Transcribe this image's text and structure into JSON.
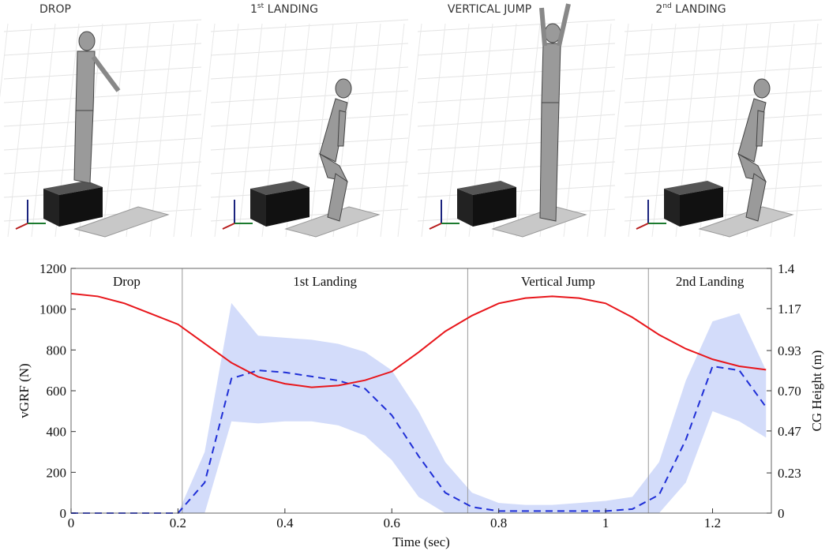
{
  "panels": [
    {
      "text": "DROP"
    },
    {
      "text": "1",
      "sup": "st",
      "after": " LANDING"
    },
    {
      "text": "VERTICAL JUMP"
    },
    {
      "text": "2",
      "sup": "nd",
      "after": " LANDING"
    }
  ],
  "chart_data": {
    "type": "line",
    "x_label": "Time (sec)",
    "y_label": "vGRF (N)",
    "y2_label": "CG Height (m)",
    "xlim": [
      0,
      1.31
    ],
    "xticks": [
      0,
      0.2,
      0.4,
      0.6,
      0.8,
      1,
      1.2
    ],
    "ylim": [
      0,
      1200
    ],
    "yticks": [
      0,
      200,
      400,
      600,
      800,
      1000,
      1200
    ],
    "y2lim": [
      0,
      1.4
    ],
    "y2ticks": [
      0,
      0.23,
      0.47,
      {
        "value": 0.7,
        "label": "0.70"
      },
      0.93,
      1.17,
      1.4
    ],
    "phase_boundaries": [
      0.208,
      0.742,
      1.08
    ],
    "phase_labels": [
      "Drop",
      "1st Landing",
      "Vertical Jump",
      "2nd Landing"
    ],
    "x": [
      0,
      0.05,
      0.1,
      0.15,
      0.2,
      0.25,
      0.3,
      0.35,
      0.4,
      0.45,
      0.5,
      0.55,
      0.6,
      0.65,
      0.7,
      0.75,
      0.8,
      0.85,
      0.9,
      0.95,
      1,
      1.05,
      1.1,
      1.15,
      1.2,
      1.25,
      1.3
    ],
    "band": {
      "color": "#d3dcfa",
      "upper": [
        0,
        0,
        0,
        0,
        0,
        300,
        1030,
        870,
        860,
        850,
        830,
        790,
        700,
        500,
        250,
        100,
        50,
        40,
        40,
        50,
        60,
        80,
        250,
        650,
        940,
        980,
        700
      ],
      "lower": [
        0,
        0,
        0,
        0,
        0,
        0,
        450,
        440,
        450,
        450,
        430,
        380,
        260,
        80,
        0,
        0,
        0,
        0,
        0,
        0,
        0,
        0,
        0,
        150,
        500,
        450,
        370
      ]
    },
    "series": [
      {
        "color": "#1f2fd6",
        "dashed": true,
        "values": [
          0,
          0,
          0,
          0,
          0,
          150,
          660,
          700,
          690,
          670,
          650,
          610,
          480,
          280,
          100,
          30,
          10,
          10,
          10,
          10,
          10,
          20,
          90,
          360,
          720,
          700,
          520
        ]
      },
      {
        "color": "#e8161b",
        "axis": "y2",
        "values": [
          1.256,
          1.24,
          1.2,
          1.14,
          1.08,
          0.97,
          0.86,
          0.78,
          0.74,
          0.72,
          0.73,
          0.76,
          0.81,
          0.92,
          1.04,
          1.13,
          1.2,
          1.23,
          1.24,
          1.23,
          1.2,
          1.12,
          1.02,
          0.94,
          0.88,
          0.84,
          0.82
        ]
      }
    ]
  }
}
